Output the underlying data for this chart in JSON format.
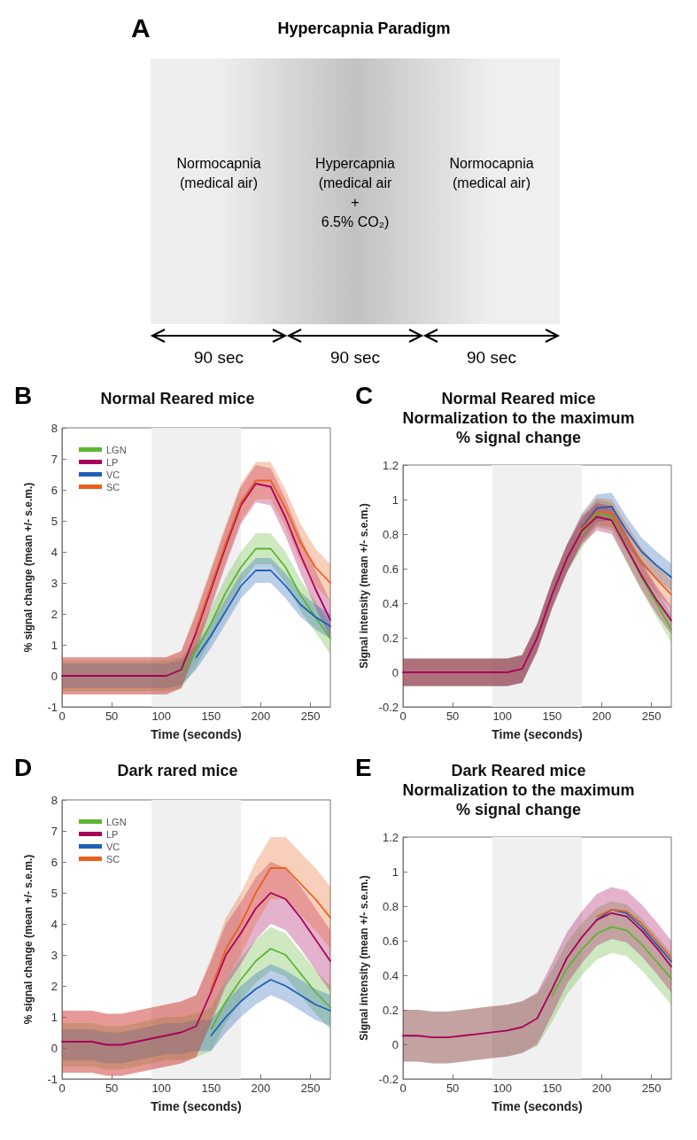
{
  "chart_data": [
    {
      "type": "other",
      "title": "Hypercapnia Paradigm",
      "annotations": [
        "A"
      ],
      "categories": [
        "Normocapnia\n(medical air)",
        "Hypercapnia\n(medical air\n+\n6.5% CO₂)",
        "Normocapnia\n(medical air)"
      ],
      "values": [
        90,
        90,
        90
      ],
      "value_labels": [
        "90 sec",
        "90 sec",
        "90 sec"
      ],
      "colors": [
        "#eeeeee",
        "#c2c2c2",
        "#efefef"
      ]
    },
    {
      "type": "line",
      "title": "Normal Reared mice",
      "annotations": [
        "B"
      ],
      "xlabel": "Time (seconds)",
      "ylabel": "% signal change (mean +/- s.e.m.)",
      "xlim": [
        0,
        270
      ],
      "xticks": [
        0,
        50,
        100,
        150,
        200,
        250
      ],
      "ylim": [
        -1,
        8
      ],
      "yticks": [
        -1,
        0,
        1,
        2,
        3,
        4,
        5,
        6,
        7,
        8
      ],
      "grid": false,
      "legend": "top left",
      "marker": "none",
      "line_style": "solid",
      "bands": [
        {
          "axis": "x",
          "from": 90,
          "to": 180,
          "color": "#f0f0f0"
        }
      ],
      "x": [
        0,
        15,
        30,
        45,
        60,
        75,
        90,
        105,
        120,
        135,
        150,
        165,
        180,
        195,
        210,
        225,
        240,
        255,
        270
      ],
      "series": [
        {
          "name": "LGN",
          "color": "#5cb531",
          "values": [
            null,
            null,
            null,
            null,
            null,
            null,
            null,
            null,
            0.1,
            0.8,
            1.7,
            2.7,
            3.5,
            4.1,
            4.1,
            3.5,
            2.6,
            1.9,
            1.2
          ],
          "lower": [
            -0.5,
            -0.5,
            -0.5,
            -0.5,
            -0.5,
            -0.5,
            -0.5,
            -0.5,
            -0.4,
            0.3,
            1.2,
            2.2,
            3.0,
            3.6,
            3.6,
            3.0,
            2.1,
            1.4,
            0.7
          ],
          "upper": [
            0.5,
            0.5,
            0.5,
            0.5,
            0.5,
            0.5,
            0.5,
            0.5,
            0.6,
            1.3,
            2.2,
            3.2,
            4.0,
            4.6,
            4.6,
            4.0,
            3.1,
            2.4,
            1.7
          ]
        },
        {
          "name": "LP",
          "color": "#a8005a",
          "values": [
            0,
            0,
            0,
            0,
            0,
            0,
            0,
            0,
            0.2,
            1.4,
            2.8,
            4.2,
            5.5,
            6.2,
            6.1,
            5.1,
            3.9,
            2.8,
            1.8
          ],
          "lower": [
            -0.6,
            -0.6,
            -0.6,
            -0.6,
            -0.6,
            -0.6,
            -0.6,
            -0.6,
            -0.4,
            0.8,
            2.2,
            3.6,
            4.9,
            5.6,
            5.5,
            4.5,
            3.3,
            2.2,
            1.2
          ],
          "upper": [
            0.6,
            0.6,
            0.6,
            0.6,
            0.6,
            0.6,
            0.6,
            0.6,
            0.8,
            2.0,
            3.4,
            4.8,
            6.1,
            6.8,
            6.7,
            5.7,
            4.5,
            3.4,
            2.4
          ]
        },
        {
          "name": "VC",
          "color": "#1f5fb5",
          "values": [
            null,
            null,
            null,
            null,
            null,
            null,
            null,
            null,
            null,
            0.6,
            1.3,
            2.1,
            2.9,
            3.4,
            3.4,
            2.9,
            2.3,
            1.9,
            1.6
          ],
          "lower": [
            -0.4,
            -0.4,
            -0.4,
            -0.4,
            -0.4,
            -0.4,
            -0.4,
            -0.4,
            -0.3,
            0.2,
            0.9,
            1.7,
            2.5,
            3.0,
            3.0,
            2.5,
            1.9,
            1.5,
            1.2
          ],
          "upper": [
            0.4,
            0.4,
            0.4,
            0.4,
            0.4,
            0.4,
            0.4,
            0.4,
            0.5,
            1.0,
            1.7,
            2.5,
            3.3,
            3.8,
            3.8,
            3.3,
            2.7,
            2.3,
            2.0
          ]
        },
        {
          "name": "SC",
          "color": "#e8601c",
          "values": [
            null,
            null,
            null,
            null,
            null,
            null,
            null,
            null,
            null,
            1.5,
            2.9,
            4.3,
            5.6,
            6.3,
            6.3,
            5.4,
            4.3,
            3.5,
            3.0
          ],
          "lower": [
            -0.6,
            -0.6,
            -0.6,
            -0.6,
            -0.6,
            -0.6,
            -0.6,
            -0.6,
            -0.4,
            0.9,
            2.3,
            3.7,
            5.0,
            5.7,
            5.7,
            4.8,
            3.7,
            2.9,
            2.4
          ],
          "upper": [
            0.6,
            0.6,
            0.6,
            0.6,
            0.6,
            0.6,
            0.6,
            0.6,
            0.8,
            2.1,
            3.5,
            4.9,
            6.2,
            6.9,
            6.9,
            6.0,
            4.9,
            4.1,
            3.6
          ]
        }
      ]
    },
    {
      "type": "line",
      "title": "Normal Reared mice\nNormalization to the maximum\n% signal change",
      "annotations": [
        "C"
      ],
      "xlabel": "Time (seconds)",
      "ylabel": "Signal intensity (mean +/- s.e.m.)",
      "xlim": [
        0,
        270
      ],
      "xticks": [
        0,
        50,
        100,
        150,
        200,
        250
      ],
      "ylim": [
        -0.2,
        1.2
      ],
      "yticks": [
        -0.2,
        0,
        0.2,
        0.4,
        0.6,
        0.8,
        1,
        1.2
      ],
      "grid": false,
      "marker": "none",
      "line_style": "solid",
      "bands": [
        {
          "axis": "x",
          "from": 90,
          "to": 180,
          "color": "#f0f0f0"
        }
      ],
      "x": [
        0,
        15,
        30,
        45,
        60,
        75,
        90,
        105,
        120,
        135,
        150,
        165,
        180,
        195,
        210,
        225,
        240,
        255,
        270
      ],
      "series": [
        {
          "color": "#5cb531",
          "values": [
            null,
            null,
            null,
            null,
            null,
            null,
            null,
            null,
            null,
            null,
            null,
            null,
            0.8,
            0.92,
            0.9,
            0.72,
            0.55,
            0.4,
            0.25
          ],
          "lower": [
            -0.08,
            -0.08,
            -0.08,
            -0.08,
            -0.08,
            -0.08,
            -0.08,
            -0.08,
            -0.06,
            0.12,
            0.37,
            0.58,
            0.72,
            0.84,
            0.82,
            0.64,
            0.47,
            0.32,
            0.17
          ],
          "upper": [
            0.08,
            0.08,
            0.08,
            0.08,
            0.08,
            0.08,
            0.08,
            0.08,
            0.1,
            0.28,
            0.53,
            0.74,
            0.88,
            1.0,
            0.98,
            0.8,
            0.63,
            0.48,
            0.33
          ]
        },
        {
          "color": "#1f5fb5",
          "values": [
            null,
            null,
            null,
            null,
            null,
            null,
            null,
            null,
            null,
            null,
            null,
            null,
            0.84,
            0.95,
            0.96,
            0.82,
            0.7,
            0.62,
            0.55
          ],
          "lower": [
            -0.08,
            -0.08,
            -0.08,
            -0.08,
            -0.08,
            -0.08,
            -0.08,
            -0.08,
            -0.06,
            0.12,
            0.37,
            0.58,
            0.76,
            0.87,
            0.88,
            0.74,
            0.62,
            0.54,
            0.47
          ],
          "upper": [
            0.08,
            0.08,
            0.08,
            0.08,
            0.08,
            0.08,
            0.08,
            0.08,
            0.1,
            0.28,
            0.53,
            0.74,
            0.92,
            1.03,
            1.04,
            0.9,
            0.78,
            0.7,
            0.63
          ]
        },
        {
          "color": "#e8601c",
          "values": [
            null,
            null,
            null,
            null,
            null,
            null,
            null,
            null,
            null,
            null,
            null,
            null,
            0.83,
            0.93,
            0.92,
            0.78,
            0.64,
            0.54,
            0.45
          ],
          "lower": [
            -0.08,
            -0.08,
            -0.08,
            -0.08,
            -0.08,
            -0.08,
            -0.08,
            -0.08,
            -0.06,
            0.12,
            0.37,
            0.58,
            0.75,
            0.85,
            0.84,
            0.7,
            0.56,
            0.46,
            0.37
          ],
          "upper": [
            0.08,
            0.08,
            0.08,
            0.08,
            0.08,
            0.08,
            0.08,
            0.08,
            0.1,
            0.28,
            0.53,
            0.74,
            0.91,
            1.01,
            1.0,
            0.86,
            0.72,
            0.62,
            0.53
          ]
        },
        {
          "color": "#a8005a",
          "values": [
            0,
            0,
            0,
            0,
            0,
            0,
            0,
            0,
            0.02,
            0.2,
            0.45,
            0.66,
            0.82,
            0.9,
            0.88,
            0.72,
            0.56,
            0.42,
            0.3
          ],
          "lower": [
            -0.08,
            -0.08,
            -0.08,
            -0.08,
            -0.08,
            -0.08,
            -0.08,
            -0.08,
            -0.06,
            0.12,
            0.37,
            0.58,
            0.74,
            0.82,
            0.8,
            0.64,
            0.48,
            0.34,
            0.22
          ],
          "upper": [
            0.08,
            0.08,
            0.08,
            0.08,
            0.08,
            0.08,
            0.08,
            0.08,
            0.1,
            0.28,
            0.53,
            0.74,
            0.9,
            0.98,
            0.96,
            0.8,
            0.64,
            0.5,
            0.38
          ]
        }
      ]
    },
    {
      "type": "line",
      "title": "Dark rared mice",
      "annotations": [
        "D"
      ],
      "xlabel": "Time (seconds)",
      "ylabel": "% signal change (mean +/- s.e.m.)",
      "xlim": [
        0,
        270
      ],
      "xticks": [
        0,
        50,
        100,
        150,
        200,
        250
      ],
      "ylim": [
        -1,
        8
      ],
      "yticks": [
        -1,
        0,
        1,
        2,
        3,
        4,
        5,
        6,
        7,
        8
      ],
      "grid": false,
      "legend": "top left",
      "marker": "none",
      "line_style": "solid",
      "bands": [
        {
          "axis": "x",
          "from": 90,
          "to": 180,
          "color": "#f0f0f0"
        }
      ],
      "x": [
        0,
        15,
        30,
        45,
        60,
        75,
        90,
        105,
        120,
        135,
        150,
        165,
        180,
        195,
        210,
        225,
        240,
        255,
        270
      ],
      "series": [
        {
          "name": "LGN",
          "color": "#5cb531",
          "values": [
            null,
            null,
            null,
            null,
            null,
            null,
            null,
            null,
            null,
            null,
            0.6,
            1.5,
            2.2,
            2.8,
            3.2,
            3.0,
            2.4,
            1.8,
            1.3
          ],
          "lower": [
            -0.6,
            -0.6,
            -0.6,
            -0.7,
            -0.7,
            -0.6,
            -0.5,
            -0.4,
            -0.4,
            -0.3,
            -0.1,
            0.8,
            1.5,
            2.1,
            2.5,
            2.3,
            1.7,
            1.1,
            0.6
          ],
          "upper": [
            0.8,
            0.8,
            0.8,
            0.7,
            0.7,
            0.8,
            0.9,
            1.0,
            1.0,
            1.1,
            1.3,
            2.2,
            2.9,
            3.5,
            3.9,
            3.7,
            3.1,
            2.5,
            2.0
          ]
        },
        {
          "name": "LP",
          "color": "#a8005a",
          "values": [
            0.2,
            0.2,
            0.2,
            0.1,
            0.1,
            0.2,
            0.3,
            0.4,
            0.5,
            0.7,
            1.8,
            3.0,
            3.7,
            4.5,
            5.0,
            4.8,
            4.2,
            3.5,
            2.8
          ],
          "lower": [
            -0.8,
            -0.8,
            -0.8,
            -0.9,
            -0.9,
            -0.8,
            -0.7,
            -0.6,
            -0.5,
            -0.3,
            0.8,
            2.0,
            2.7,
            3.5,
            4.0,
            3.8,
            3.2,
            2.5,
            1.8
          ],
          "upper": [
            1.2,
            1.2,
            1.2,
            1.1,
            1.1,
            1.2,
            1.3,
            1.4,
            1.5,
            1.7,
            2.8,
            4.0,
            4.7,
            5.5,
            6.0,
            5.8,
            5.2,
            4.5,
            3.8
          ]
        },
        {
          "name": "VC",
          "color": "#1f5fb5",
          "values": [
            null,
            null,
            null,
            null,
            null,
            null,
            null,
            null,
            null,
            null,
            0.4,
            1.0,
            1.5,
            1.9,
            2.2,
            2.0,
            1.7,
            1.4,
            1.2
          ],
          "lower": [
            -0.4,
            -0.4,
            -0.4,
            -0.5,
            -0.5,
            -0.4,
            -0.3,
            -0.2,
            -0.2,
            -0.1,
            -0.1,
            0.5,
            1.0,
            1.4,
            1.7,
            1.5,
            1.2,
            0.9,
            0.7
          ],
          "upper": [
            0.6,
            0.6,
            0.6,
            0.5,
            0.5,
            0.6,
            0.7,
            0.8,
            0.8,
            0.9,
            0.9,
            1.5,
            2.0,
            2.4,
            2.7,
            2.5,
            2.2,
            1.9,
            1.7
          ]
        },
        {
          "name": "SC",
          "color": "#e8601c",
          "values": [
            null,
            null,
            null,
            null,
            null,
            null,
            null,
            null,
            null,
            null,
            1.9,
            3.2,
            4.0,
            5.0,
            5.8,
            5.8,
            5.3,
            4.8,
            4.2
          ],
          "lower": [
            -0.8,
            -0.8,
            -0.8,
            -0.9,
            -0.9,
            -0.8,
            -0.7,
            -0.6,
            -0.5,
            -0.3,
            0.9,
            2.2,
            3.0,
            4.0,
            4.8,
            4.8,
            4.3,
            3.8,
            3.2
          ],
          "upper": [
            1.2,
            1.2,
            1.2,
            1.1,
            1.1,
            1.2,
            1.3,
            1.4,
            1.5,
            1.7,
            2.9,
            4.2,
            5.0,
            6.0,
            6.8,
            6.8,
            6.3,
            5.8,
            5.2
          ]
        }
      ]
    },
    {
      "type": "line",
      "title": "Dark Reared mice\nNormalization to the maximum\n% signal change",
      "annotations": [
        "E"
      ],
      "xlabel": "Time (seconds)",
      "ylabel": "Signal intensity (mean +/- s.e.m.)",
      "xlim": [
        0,
        270
      ],
      "xticks": [
        0,
        50,
        100,
        150,
        200,
        250
      ],
      "ylim": [
        -0.2,
        1.2
      ],
      "yticks": [
        -0.2,
        0,
        0.2,
        0.4,
        0.6,
        0.8,
        1,
        1.2
      ],
      "grid": false,
      "marker": "none",
      "line_style": "solid",
      "bands": [
        {
          "axis": "x",
          "from": 90,
          "to": 180,
          "color": "#f0f0f0"
        }
      ],
      "x": [
        0,
        15,
        30,
        45,
        60,
        75,
        90,
        105,
        120,
        135,
        150,
        165,
        180,
        195,
        210,
        225,
        240,
        255,
        270
      ],
      "series": [
        {
          "color": "#5cb531",
          "values": [
            null,
            null,
            null,
            null,
            null,
            null,
            null,
            null,
            null,
            null,
            0.28,
            0.44,
            0.55,
            0.64,
            0.68,
            0.66,
            0.58,
            0.48,
            0.38
          ],
          "lower": [
            -0.1,
            -0.1,
            -0.11,
            -0.11,
            -0.1,
            -0.09,
            -0.08,
            -0.07,
            -0.05,
            -0.01,
            0.13,
            0.29,
            0.4,
            0.49,
            0.53,
            0.51,
            0.43,
            0.33,
            0.23
          ],
          "upper": [
            0.2,
            0.2,
            0.19,
            0.19,
            0.2,
            0.21,
            0.22,
            0.23,
            0.25,
            0.29,
            0.43,
            0.59,
            0.7,
            0.79,
            0.83,
            0.81,
            0.73,
            0.63,
            0.53
          ]
        },
        {
          "color": "#1f5fb5",
          "values": [
            null,
            null,
            null,
            null,
            null,
            null,
            null,
            null,
            null,
            null,
            null,
            null,
            null,
            0.72,
            0.78,
            0.76,
            0.68,
            0.58,
            0.48
          ]
        },
        {
          "color": "#e8601c",
          "values": [
            null,
            null,
            null,
            null,
            null,
            null,
            null,
            null,
            null,
            null,
            null,
            null,
            null,
            0.74,
            0.78,
            0.77,
            0.7,
            0.6,
            0.5
          ]
        },
        {
          "color": "#a8005a",
          "values": [
            0.05,
            0.05,
            0.04,
            0.04,
            0.05,
            0.06,
            0.07,
            0.08,
            0.1,
            0.15,
            0.32,
            0.5,
            0.62,
            0.72,
            0.76,
            0.74,
            0.66,
            0.56,
            0.45
          ],
          "lower": [
            -0.1,
            -0.1,
            -0.11,
            -0.11,
            -0.1,
            -0.09,
            -0.08,
            -0.07,
            -0.05,
            0,
            0.17,
            0.35,
            0.47,
            0.57,
            0.61,
            0.59,
            0.51,
            0.41,
            0.3
          ],
          "upper": [
            0.2,
            0.2,
            0.19,
            0.19,
            0.2,
            0.21,
            0.22,
            0.23,
            0.25,
            0.3,
            0.47,
            0.65,
            0.77,
            0.87,
            0.91,
            0.89,
            0.81,
            0.71,
            0.6
          ]
        }
      ]
    }
  ]
}
